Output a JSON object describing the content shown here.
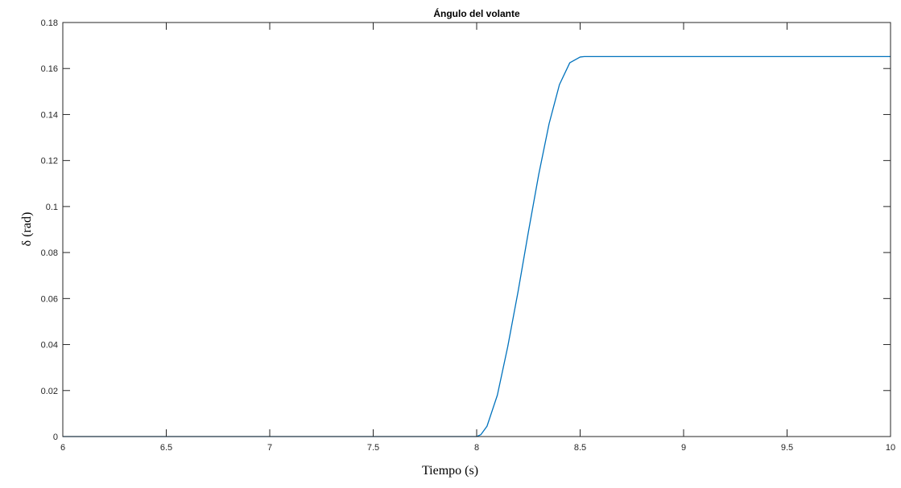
{
  "chart_data": {
    "type": "line",
    "title": "Ángulo del volante",
    "xlabel": "Tiempo (s)",
    "ylabel": "δ (rad)",
    "xlim": [
      6,
      10
    ],
    "ylim": [
      0,
      0.18
    ],
    "grid": false,
    "x_ticks": [
      "6",
      "6.5",
      "7",
      "7.5",
      "8",
      "8.5",
      "9",
      "9.5",
      "10"
    ],
    "y_ticks": [
      "0",
      "0.02",
      "0.04",
      "0.06",
      "0.08",
      "0.1",
      "0.12",
      "0.14",
      "0.16",
      "0.18"
    ],
    "series": [
      {
        "color": "#0072BD",
        "x": [
          6.0,
          7.0,
          8.0,
          8.02,
          8.05,
          8.1,
          8.15,
          8.2,
          8.25,
          8.3,
          8.35,
          8.4,
          8.45,
          8.5,
          8.52,
          9.0,
          9.5,
          10.0
        ],
        "y": [
          0.0,
          0.0,
          0.0,
          0.0008,
          0.0045,
          0.018,
          0.039,
          0.063,
          0.089,
          0.114,
          0.136,
          0.153,
          0.1625,
          0.165,
          0.1652,
          0.1652,
          0.1652,
          0.1652
        ]
      }
    ]
  }
}
